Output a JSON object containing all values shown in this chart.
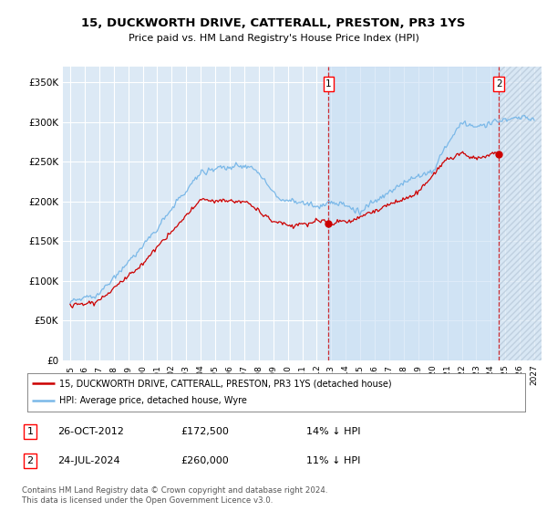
{
  "title": "15, DUCKWORTH DRIVE, CATTERALL, PRESTON, PR3 1YS",
  "subtitle": "Price paid vs. HM Land Registry's House Price Index (HPI)",
  "ylim": [
    0,
    370000
  ],
  "yticks": [
    0,
    50000,
    100000,
    150000,
    200000,
    250000,
    300000,
    350000
  ],
  "ytick_labels": [
    "£0",
    "£50K",
    "£100K",
    "£150K",
    "£200K",
    "£250K",
    "£300K",
    "£350K"
  ],
  "hpi_color": "#7ab8e8",
  "price_color": "#cc0000",
  "sale1_x": 2012.82,
  "sale1_price": 172500,
  "sale2_x": 2024.56,
  "sale2_price": 260000,
  "sale1_date_str": "26-OCT-2012",
  "sale1_price_str": "£172,500",
  "sale1_hpi_str": "14% ↓ HPI",
  "sale2_date_str": "24-JUL-2024",
  "sale2_price_str": "£260,000",
  "sale2_hpi_str": "11% ↓ HPI",
  "legend_label_red": "15, DUCKWORTH DRIVE, CATTERALL, PRESTON, PR3 1YS (detached house)",
  "legend_label_blue": "HPI: Average price, detached house, Wyre",
  "footnote": "Contains HM Land Registry data © Crown copyright and database right 2024.\nThis data is licensed under the Open Government Licence v3.0.",
  "bg_color": "#ffffff",
  "plot_bg_color": "#dce9f5",
  "grid_color": "#ffffff",
  "shade_between_color": "#dce9f5",
  "xmin": 1994.5,
  "xmax": 2027.5
}
